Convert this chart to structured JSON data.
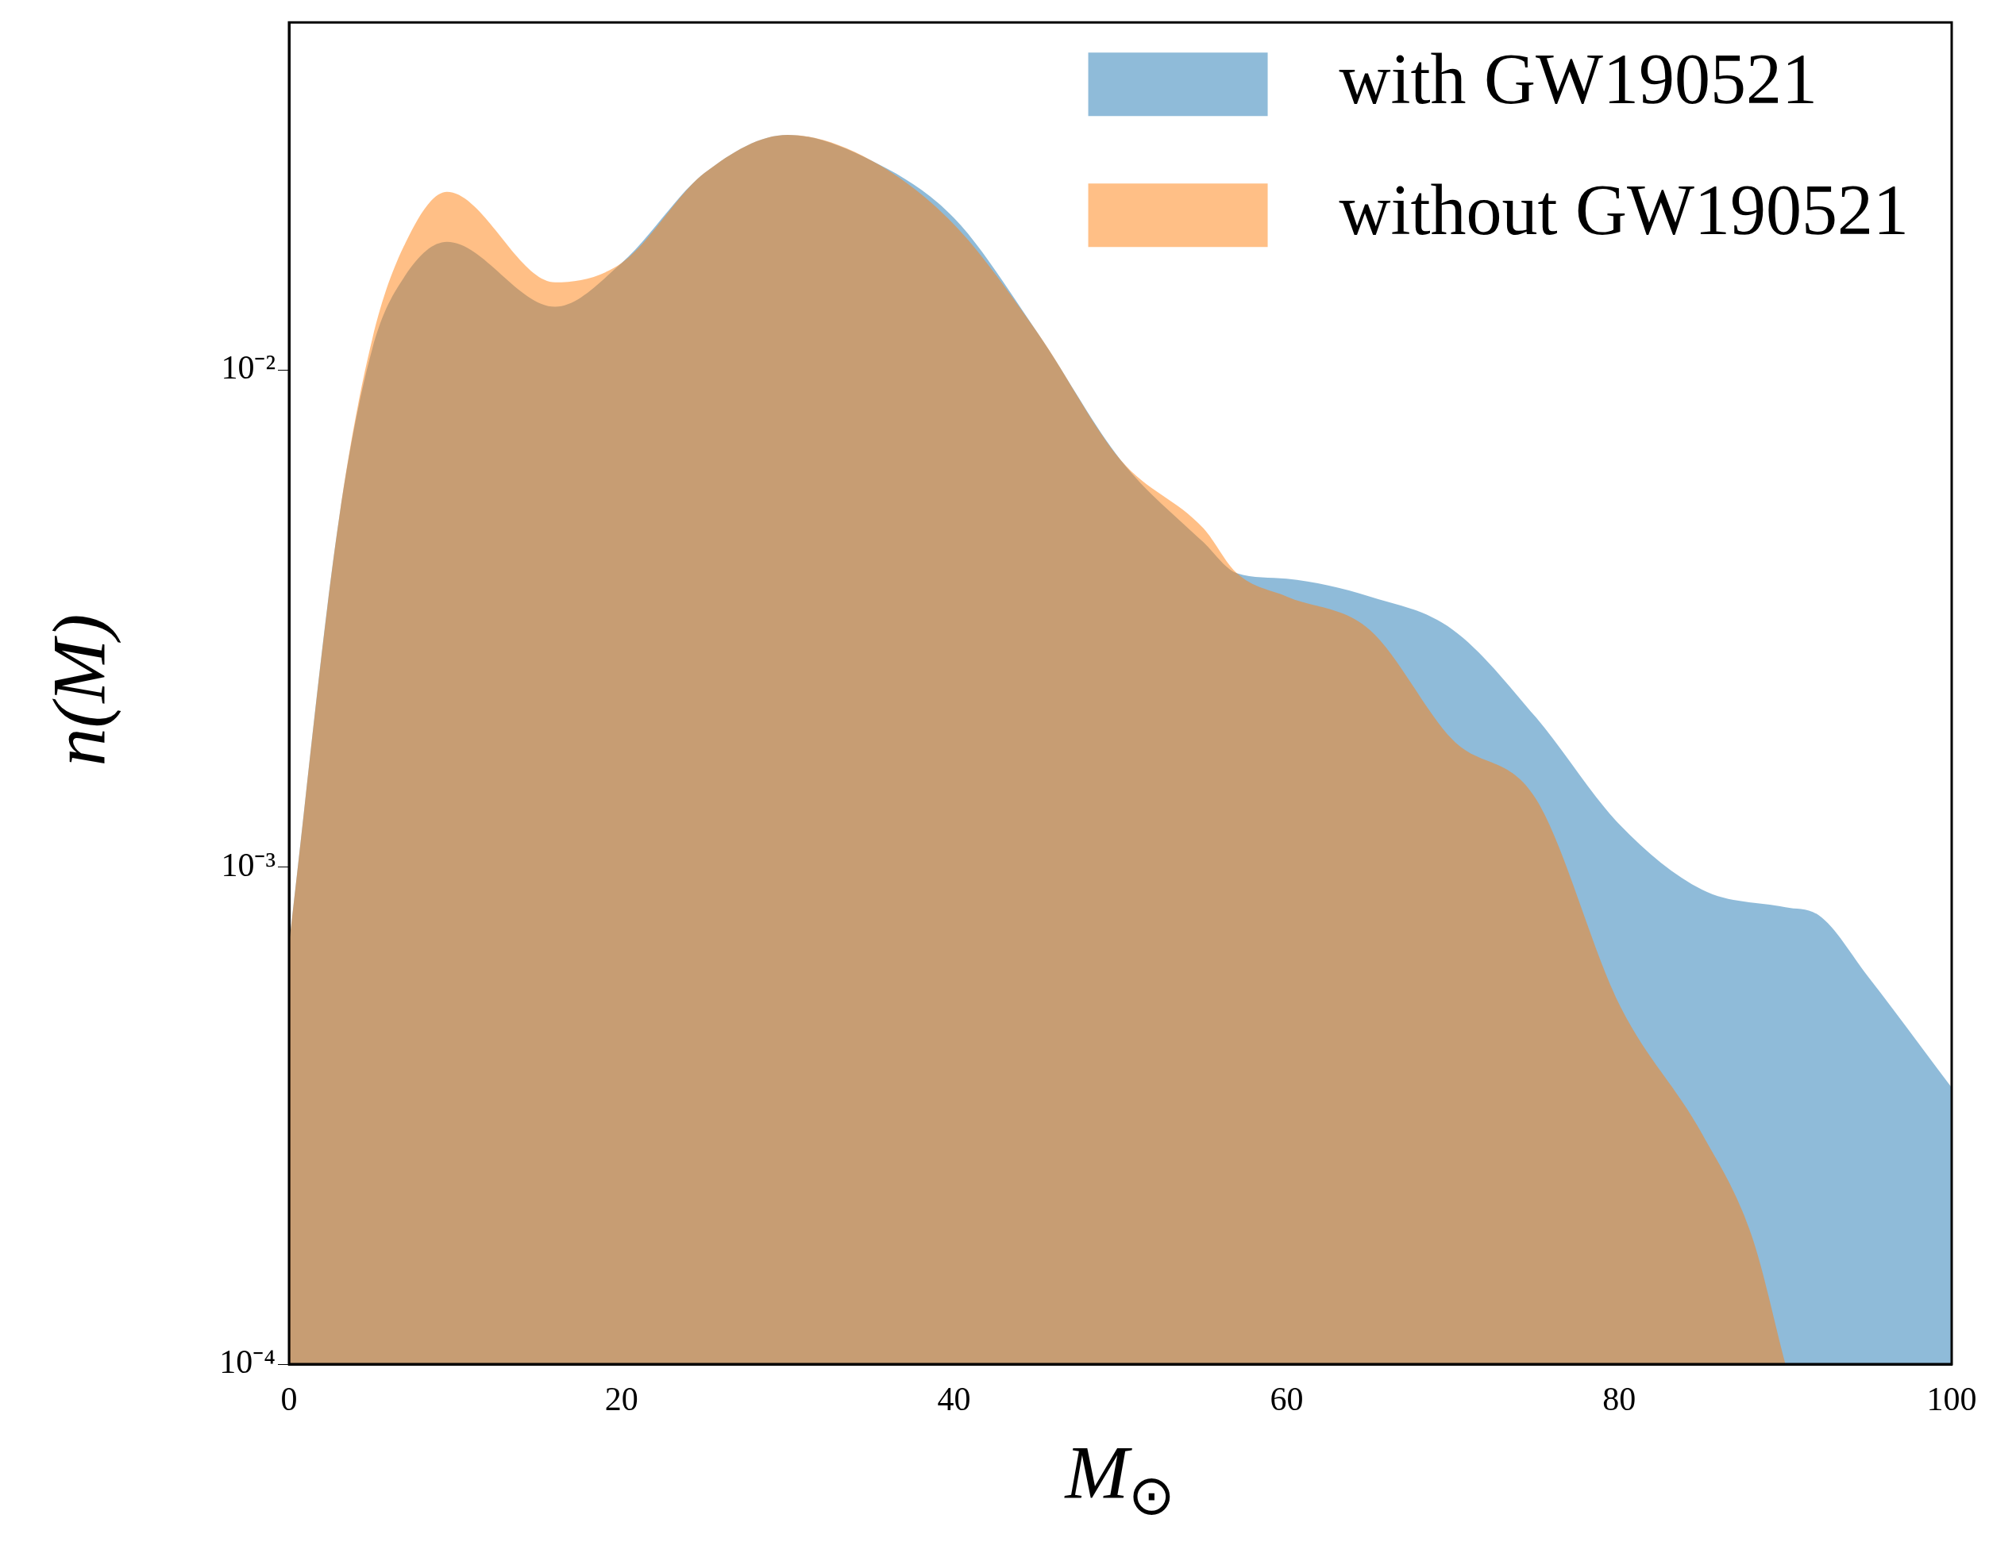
{
  "chart_data": {
    "type": "area",
    "xlabel": "M$_{⊙}$",
    "ylabel": "n(M)",
    "xlim": [
      0,
      100
    ],
    "xticks": [
      0,
      20,
      40,
      60,
      80,
      100
    ],
    "ylim": [
      0.0001,
      0.05
    ],
    "yticks": [
      {
        "value": 0.0001,
        "label": "10⁻⁴"
      },
      {
        "value": 0.001,
        "label": "10⁻³"
      },
      {
        "value": 0.01,
        "label": "10⁻²"
      }
    ],
    "log": "y",
    "grid": false,
    "legend": "top right",
    "series": [
      {
        "name": "with GW190521",
        "color": "#1f77b4",
        "x": [
          0,
          3,
          5,
          7,
          9.5,
          16,
          20,
          25,
          30,
          35,
          40,
          45,
          50,
          55,
          57,
          60,
          65,
          70,
          75,
          80,
          85,
          90,
          92,
          95,
          100
        ],
        "values": [
          0.0007,
          0.005,
          0.011,
          0.0155,
          0.0181,
          0.0134,
          0.0164,
          0.0249,
          0.0297,
          0.0264,
          0.0202,
          0.0119,
          0.0066,
          0.0045,
          0.0039,
          0.0038,
          0.0035,
          0.003,
          0.002,
          0.00122,
          0.0009,
          0.00083,
          0.0008,
          0.0006,
          0.00036
        ]
      },
      {
        "name": "without GW190521",
        "color": "#ff7f0e",
        "x": [
          0,
          3,
          5,
          7,
          9.5,
          16,
          20,
          25,
          30,
          35,
          40,
          45,
          50,
          55,
          57,
          60,
          65,
          70,
          75,
          80,
          85,
          88,
          90
        ],
        "values": [
          0.0007,
          0.005,
          0.0115,
          0.018,
          0.0228,
          0.015,
          0.0164,
          0.0249,
          0.0297,
          0.0264,
          0.0196,
          0.0119,
          0.0066,
          0.0048,
          0.0039,
          0.0035,
          0.003,
          0.0018,
          0.00137,
          0.00053,
          0.00029,
          0.00018,
          0.0001
        ]
      }
    ]
  }
}
